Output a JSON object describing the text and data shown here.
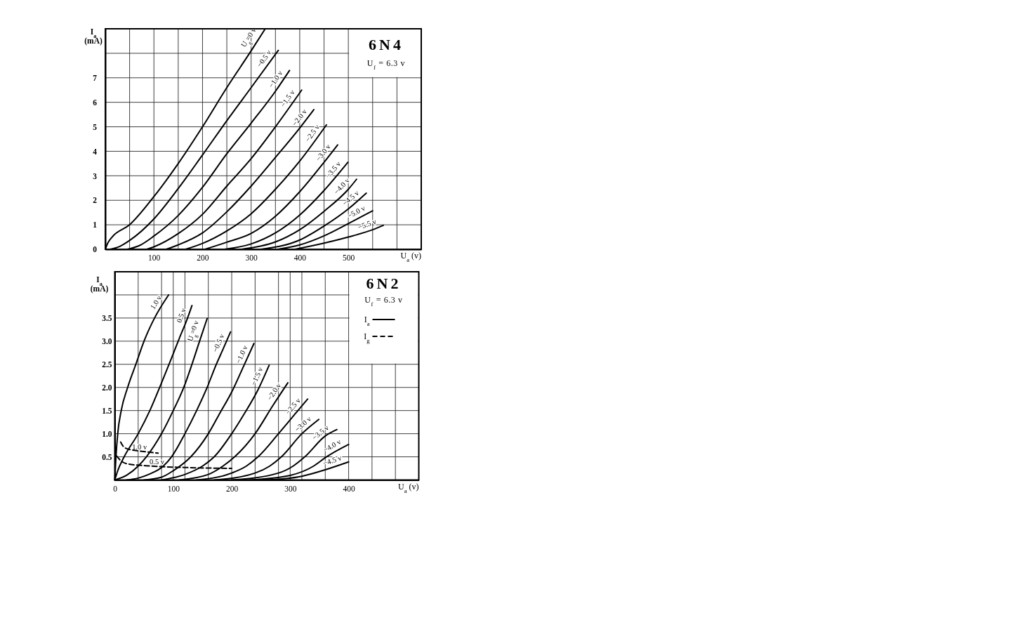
{
  "chart_data": [
    {
      "type": "line",
      "title": "6N4",
      "subtitle": "U$_{f}$ = 6.3 v",
      "xlabel": "U$_{a}$ (v)",
      "ylabel": "I$_{a}$ (mA)",
      "xlim": [
        0,
        650
      ],
      "ylim": [
        0,
        9
      ],
      "xticks": [
        {
          "value": 0,
          "label": null
        },
        {
          "value": 50,
          "label": null
        },
        100,
        {
          "value": 150,
          "label": null
        },
        200,
        {
          "value": 250,
          "label": null
        },
        300,
        {
          "value": 350,
          "label": null
        },
        400,
        {
          "value": 450,
          "label": null
        },
        500,
        {
          "value": 550,
          "label": null
        },
        {
          "value": 600,
          "label": null
        },
        {
          "value": 650,
          "label": null
        }
      ],
      "yticks": [
        0,
        1,
        2,
        3,
        4,
        5,
        6,
        7,
        {
          "value": 8,
          "label": null
        },
        {
          "value": 9,
          "label": null
        }
      ],
      "grid": true,
      "series": [
        {
          "name": "U$_{g}$=0 v",
          "color": "#000000",
          "x": [
            0,
            5,
            14,
            50,
            100,
            150,
            200,
            250,
            300,
            329
          ],
          "values": [
            0,
            0.25,
            0.5,
            1.0,
            2.15,
            3.5,
            5.0,
            6.6,
            8.1,
            9.0
          ]
        },
        {
          "name": "−0.5 v",
          "color": "#000000",
          "x": [
            10,
            30,
            50,
            100,
            150,
            200,
            250,
            300,
            356
          ],
          "values": [
            0,
            0.12,
            0.36,
            1.24,
            2.48,
            3.85,
            5.25,
            6.6,
            8.12
          ]
        },
        {
          "name": "−1.0 v",
          "color": "#000000",
          "x": [
            45,
            70,
            100,
            150,
            200,
            250,
            300,
            350,
            379
          ],
          "values": [
            0,
            0.15,
            0.54,
            1.38,
            2.53,
            3.9,
            5.15,
            6.45,
            7.3
          ]
        },
        {
          "name": "−1.5 v",
          "color": "#000000",
          "x": [
            85,
            100,
            150,
            200,
            250,
            300,
            350,
            404
          ],
          "values": [
            0,
            0.1,
            0.64,
            1.43,
            2.58,
            3.7,
            5.0,
            6.5
          ]
        },
        {
          "name": "−2.0 v",
          "color": "#000000",
          "x": [
            125,
            150,
            200,
            250,
            300,
            350,
            400,
            429
          ],
          "values": [
            0,
            0.18,
            0.67,
            1.53,
            2.58,
            3.75,
            4.95,
            5.7
          ]
        },
        {
          "name": "−2.5 v",
          "color": "#000000",
          "x": [
            165,
            200,
            250,
            300,
            350,
            400,
            455
          ],
          "values": [
            0,
            0.24,
            0.75,
            1.45,
            2.45,
            3.6,
            5.08
          ]
        },
        {
          "name": "−3.0 v",
          "color": "#000000",
          "x": [
            205,
            250,
            300,
            350,
            400,
            450,
            478
          ],
          "values": [
            0,
            0.29,
            0.65,
            1.35,
            2.35,
            3.55,
            4.26
          ]
        },
        {
          "name": "−3.5 v",
          "color": "#000000",
          "x": [
            245,
            300,
            350,
            400,
            450,
            499
          ],
          "values": [
            0,
            0.22,
            0.67,
            1.4,
            2.4,
            3.55
          ]
        },
        {
          "name": "−4.0 v",
          "color": "#000000",
          "x": [
            280,
            350,
            400,
            450,
            500,
            517
          ],
          "values": [
            0,
            0.3,
            0.8,
            1.55,
            2.45,
            2.86
          ]
        },
        {
          "name": "−4.5 v",
          "color": "#000000",
          "x": [
            320,
            400,
            450,
            500,
            537
          ],
          "values": [
            0,
            0.38,
            0.95,
            1.65,
            2.29
          ]
        },
        {
          "name": "−5.0 v",
          "color": "#000000",
          "x": [
            355,
            400,
            450,
            500,
            550
          ],
          "values": [
            0,
            0.18,
            0.55,
            1.05,
            1.57
          ]
        },
        {
          "name": "−5.5 v",
          "color": "#000000",
          "x": [
            390,
            450,
            500,
            550,
            572
          ],
          "values": [
            0,
            0.25,
            0.5,
            0.8,
            0.98
          ]
        }
      ]
    },
    {
      "type": "line",
      "title": "6N2",
      "subtitle": "U$_{f}$ = 6.3 v",
      "xlabel": "U$_{a}$ (v)",
      "ylabel": "I$_{a}$ (mA)",
      "annotations": [
        "I$_{a}$",
        "I$_{g}$"
      ],
      "xlim": [
        0,
        520
      ],
      "ylim": [
        0,
        4.5
      ],
      "xticks": [
        0,
        {
          "value": 40,
          "label": null
        },
        {
          "value": 80,
          "label": null
        },
        100,
        {
          "value": 120,
          "label": null
        },
        {
          "value": 160,
          "label": null
        },
        200,
        {
          "value": 240,
          "label": null
        },
        {
          "value": 280,
          "label": null
        },
        300,
        {
          "value": 320,
          "label": null
        },
        {
          "value": 360,
          "label": null
        },
        400,
        {
          "value": 440,
          "label": null
        },
        {
          "value": 480,
          "label": null
        },
        {
          "value": 520,
          "label": null
        }
      ],
      "yticks": [
        {
          "value": 0,
          "label": null
        },
        0.5,
        {
          "value": 1,
          "label": "1.0"
        },
        1.5,
        {
          "value": 2,
          "label": "2.0"
        },
        2.5,
        {
          "value": 3,
          "label": "3.0"
        },
        3.5,
        {
          "value": 4,
          "label": null
        },
        {
          "value": 4.5,
          "label": null
        }
      ],
      "grid": true,
      "series": [
        {
          "name": "1.0 v",
          "color": "#000000",
          "x": [
            0,
            2,
            5,
            11,
            22,
            36,
            50,
            68,
            92
          ],
          "values": [
            0,
            0.5,
            1.0,
            1.5,
            2.0,
            2.5,
            3.0,
            3.5,
            4.0
          ]
        },
        {
          "name": "0.5 v",
          "color": "#000000",
          "x": [
            0,
            5,
            16,
            40,
            60,
            80,
            96,
            110,
            123,
            132
          ],
          "values": [
            0,
            0.2,
            0.5,
            1.0,
            1.5,
            2.1,
            2.6,
            3.05,
            3.45,
            3.77
          ]
        },
        {
          "name": "U$_{g}$=0 v",
          "color": "#000000",
          "x": [
            0,
            20,
            40,
            54,
            80,
            100,
            118,
            132,
            145,
            158
          ],
          "values": [
            0,
            0.1,
            0.3,
            0.5,
            1.0,
            1.5,
            2.0,
            2.5,
            3.0,
            3.49
          ]
        },
        {
          "name": "−0.5 v",
          "color": "#000000",
          "x": [
            20,
            40,
            60,
            83,
            97,
            120,
            140,
            158,
            172,
            186,
            198
          ],
          "values": [
            0,
            0.04,
            0.13,
            0.3,
            0.5,
            1.0,
            1.5,
            2.0,
            2.45,
            2.85,
            3.2
          ]
        },
        {
          "name": "−1.0 v",
          "color": "#000000",
          "x": [
            50,
            80,
            100,
            130,
            160,
            180,
            200,
            220,
            238
          ],
          "values": [
            0,
            0.06,
            0.2,
            0.5,
            1.0,
            1.45,
            1.9,
            2.45,
            2.95
          ]
        },
        {
          "name": "−1.5 v",
          "color": "#000000",
          "x": [
            80,
            120,
            150,
            170,
            200,
            220,
            245,
            264
          ],
          "values": [
            0,
            0.12,
            0.3,
            0.5,
            1.0,
            1.4,
            1.95,
            2.48
          ]
        },
        {
          "name": "−2.0 v",
          "color": "#000000",
          "x": [
            110,
            160,
            185,
            205,
            240,
            270,
            296
          ],
          "values": [
            0,
            0.12,
            0.3,
            0.5,
            1.0,
            1.6,
            2.1
          ]
        },
        {
          "name": "−2.5 v",
          "color": "#000000",
          "x": [
            140,
            200,
            225,
            245,
            280,
            310,
            330
          ],
          "values": [
            0,
            0.15,
            0.3,
            0.5,
            1.0,
            1.45,
            1.75
          ]
        },
        {
          "name": "−3.0 v",
          "color": "#000000",
          "x": [
            170,
            240,
            265,
            285,
            320,
            349
          ],
          "values": [
            0,
            0.15,
            0.3,
            0.5,
            1.0,
            1.31
          ]
        },
        {
          "name": "−3.5 v",
          "color": "#000000",
          "x": [
            200,
            280,
            305,
            325,
            360,
            380
          ],
          "values": [
            0,
            0.15,
            0.3,
            0.5,
            0.95,
            1.09
          ]
        },
        {
          "name": "−4.0 v",
          "color": "#000000",
          "x": [
            230,
            300,
            340,
            362,
            400
          ],
          "values": [
            0,
            0.1,
            0.3,
            0.5,
            0.77
          ]
        },
        {
          "name": "−4.5 v",
          "color": "#000000",
          "x": [
            260,
            320,
            360,
            400
          ],
          "values": [
            0,
            0.08,
            0.22,
            0.39
          ]
        },
        {
          "name": "1.0 v",
          "color": "#000000",
          "line_style": "dashed",
          "x": [
            10,
            15,
            25,
            40,
            74
          ],
          "values": [
            0.82,
            0.72,
            0.66,
            0.63,
            0.58
          ]
        },
        {
          "name": "0.5 v",
          "color": "#000000",
          "line_style": "dashed",
          "x": [
            3,
            10,
            21,
            62,
            120,
            200
          ],
          "values": [
            0.52,
            0.42,
            0.35,
            0.3,
            0.27,
            0.25
          ]
        }
      ]
    }
  ]
}
